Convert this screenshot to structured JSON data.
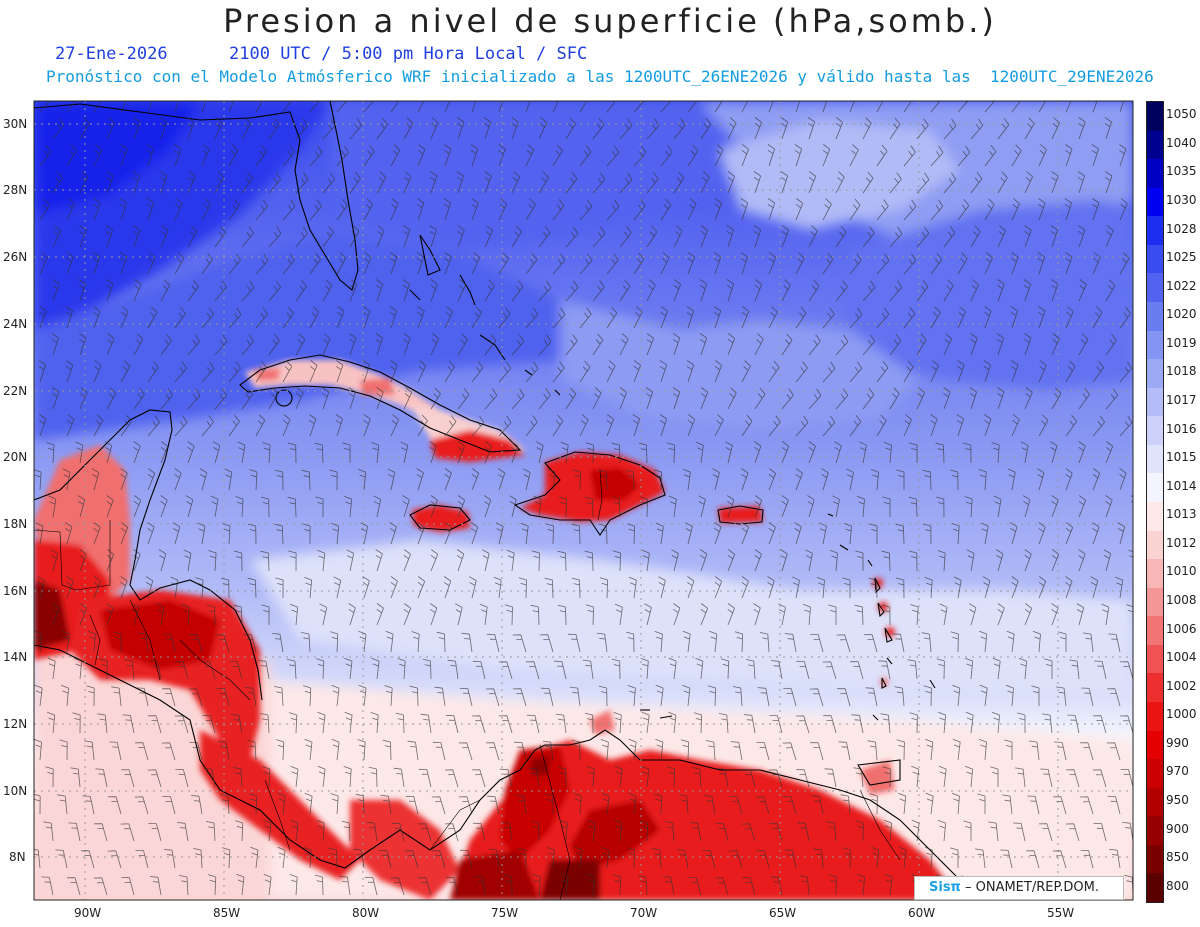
{
  "header": {
    "title": "Presion a nivel de superficie (hPa,somb.)",
    "date": "27-Ene-2026",
    "time": "2100 UTC / 5:00 pm Hora Local / SFC",
    "forecast_note": "Pronóstico con el Modelo Atmósferico WRF inicializado a las 1200UTC_26ENE2026 y válido hasta las  1200UTC_29ENE2026"
  },
  "map": {
    "region": "Caribbean / Gulf of Mexico / Central America",
    "overlays": [
      "pressure-shading",
      "wind-barbs",
      "coastlines",
      "political-borders",
      "graticule"
    ]
  },
  "axes": {
    "lat_labels": [
      "30N",
      "28N",
      "26N",
      "24N",
      "22N",
      "20N",
      "18N",
      "16N",
      "14N",
      "12N",
      "10N",
      "8N"
    ],
    "lon_labels": [
      "90W",
      "85W",
      "80W",
      "75W",
      "70W",
      "65W",
      "60W",
      "55W"
    ]
  },
  "legend": {
    "levels": [
      {
        "label": "1050",
        "color": "#000060"
      },
      {
        "label": "1040",
        "color": "#00008e"
      },
      {
        "label": "1035",
        "color": "#0000c4"
      },
      {
        "label": "1030",
        "color": "#0000f2"
      },
      {
        "label": "1028",
        "color": "#1e2ef0"
      },
      {
        "label": "1025",
        "color": "#3a4bef"
      },
      {
        "label": "1022",
        "color": "#5264ef"
      },
      {
        "label": "1020",
        "color": "#6a7cf1"
      },
      {
        "label": "1019",
        "color": "#8494f3"
      },
      {
        "label": "1018",
        "color": "#9ca9f5"
      },
      {
        "label": "1017",
        "color": "#b4bdf7"
      },
      {
        "label": "1016",
        "color": "#cbd1f9"
      },
      {
        "label": "1015",
        "color": "#e0e4fb"
      },
      {
        "label": "1014",
        "color": "#f3f4fd"
      },
      {
        "label": "1013",
        "color": "#fde8e8"
      },
      {
        "label": "1012",
        "color": "#fbd3d3"
      },
      {
        "label": "1010",
        "color": "#f8b6b6"
      },
      {
        "label": "1008",
        "color": "#f59696"
      },
      {
        "label": "1006",
        "color": "#f27474"
      },
      {
        "label": "1004",
        "color": "#ef5252"
      },
      {
        "label": "1002",
        "color": "#ec3030"
      },
      {
        "label": "1000",
        "color": "#ea1414"
      },
      {
        "label": "990",
        "color": "#e40000"
      },
      {
        "label": "970",
        "color": "#cc0000"
      },
      {
        "label": "950",
        "color": "#b20000"
      },
      {
        "label": "900",
        "color": "#960000"
      },
      {
        "label": "850",
        "color": "#7a0000"
      },
      {
        "label": "800",
        "color": "#5a0000"
      }
    ]
  },
  "credit": {
    "logo": "Sisπ",
    "text": "– ONAMET/REP.DOM."
  }
}
